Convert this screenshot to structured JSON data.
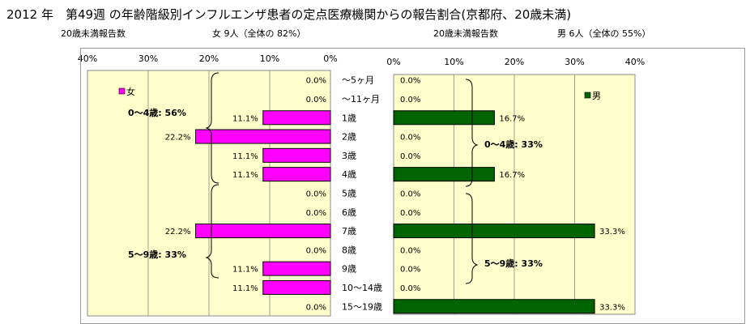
{
  "title": "2012 年　第49週 の年齢階級別インフルエンザ患者の定点医療機関からの報告割合(京都府、20歳未満)",
  "header": {
    "female_count_label": "20歳未満報告数",
    "female_summary": "女  9人（全体の  82%）",
    "male_count_label": "20歳未満報告数",
    "male_summary": "男  6人（全体の  55%）"
  },
  "chart_data": [
    {
      "type": "bar",
      "orientation": "horizontal",
      "direction": "right-to-left",
      "categories": [
        "～5ヶ月",
        "～11ヶ月",
        "1歳",
        "2歳",
        "3歳",
        "4歳",
        "5歳",
        "6歳",
        "7歳",
        "8歳",
        "9歳",
        "10～14歳",
        "15～19歳"
      ],
      "series": [
        {
          "name": "女",
          "color": "#ff00ff",
          "values": [
            0.0,
            0.0,
            11.1,
            22.2,
            11.1,
            11.1,
            0.0,
            0.0,
            22.2,
            0.0,
            11.1,
            11.1,
            0.0
          ]
        }
      ],
      "data_labels": [
        "0.0%",
        "0.0%",
        "11.1%",
        "22.2%",
        "11.1%",
        "11.1%",
        "0.0%",
        "0.0%",
        "22.2%",
        "0.0%",
        "11.1%",
        "11.1%",
        "0.0%"
      ],
      "xlim": [
        0,
        40
      ],
      "ticks": [
        "40%",
        "30%",
        "20%",
        "10%",
        "0%"
      ],
      "grid": true,
      "legend": "top-left",
      "annotations": [
        "0～4歳:  56%",
        "5～9歳:  33%"
      ]
    },
    {
      "type": "bar",
      "orientation": "horizontal",
      "direction": "left-to-right",
      "categories": [
        "～5ヶ月",
        "～11ヶ月",
        "1歳",
        "2歳",
        "3歳",
        "4歳",
        "5歳",
        "6歳",
        "7歳",
        "8歳",
        "9歳",
        "10～14歳",
        "15～19歳"
      ],
      "series": [
        {
          "name": "男",
          "color": "#006400",
          "values": [
            0.0,
            0.0,
            16.7,
            0.0,
            0.0,
            16.7,
            0.0,
            0.0,
            33.3,
            0.0,
            0.0,
            0.0,
            33.3
          ]
        }
      ],
      "data_labels": [
        "0.0%",
        "0.0%",
        "16.7%",
        "0.0%",
        "0.0%",
        "16.7%",
        "0.0%",
        "0.0%",
        "33.3%",
        "0.0%",
        "0.0%",
        "0.0%",
        "33.3%"
      ],
      "xlim": [
        0,
        40
      ],
      "ticks": [
        "0%",
        "10%",
        "20%",
        "30%",
        "40%"
      ],
      "grid": true,
      "legend": "top-right",
      "annotations": [
        "0～4歳:  33%",
        "5～9歳:  33%"
      ]
    }
  ]
}
